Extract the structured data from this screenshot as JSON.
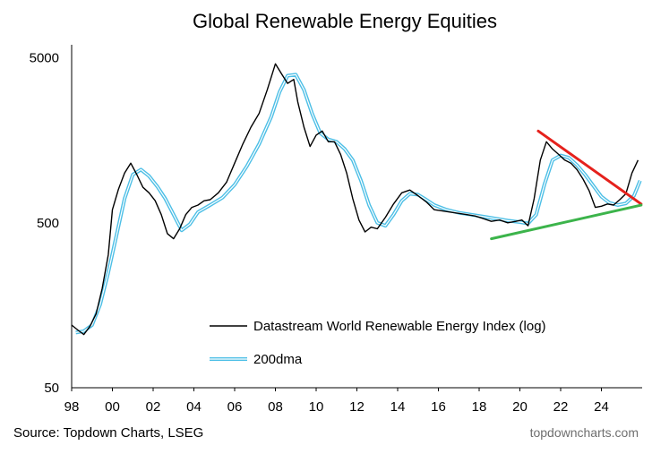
{
  "chart_data": {
    "type": "line",
    "title": "Global Renewable Energy Equities",
    "xlabel": "",
    "ylabel": "",
    "yscale": "log",
    "ylim": [
      50,
      6000
    ],
    "xlim": [
      1998,
      2026
    ],
    "y_ticks": [
      {
        "value": 50,
        "label": "50"
      },
      {
        "value": 500,
        "label": "500"
      },
      {
        "value": 5000,
        "label": "5000"
      }
    ],
    "x_ticks": [
      {
        "value": 1998,
        "label": "98"
      },
      {
        "value": 2000,
        "label": "00"
      },
      {
        "value": 2002,
        "label": "02"
      },
      {
        "value": 2004,
        "label": "04"
      },
      {
        "value": 2006,
        "label": "06"
      },
      {
        "value": 2008,
        "label": "08"
      },
      {
        "value": 2010,
        "label": "10"
      },
      {
        "value": 2012,
        "label": "12"
      },
      {
        "value": 2014,
        "label": "14"
      },
      {
        "value": 2016,
        "label": "16"
      },
      {
        "value": 2018,
        "label": "18"
      },
      {
        "value": 2020,
        "label": "20"
      },
      {
        "value": 2022,
        "label": "22"
      },
      {
        "value": 2024,
        "label": "24"
      }
    ],
    "series": [
      {
        "name": "Datastream World Renewable Energy Index (log)",
        "color": "#000000",
        "x": [
          1998.0,
          1998.3,
          1998.6,
          1998.9,
          1999.2,
          1999.5,
          1999.8,
          2000.0,
          2000.3,
          2000.6,
          2000.9,
          2001.2,
          2001.5,
          2001.8,
          2002.1,
          2002.4,
          2002.7,
          2003.0,
          2003.3,
          2003.6,
          2003.9,
          2004.2,
          2004.5,
          2004.8,
          2005.2,
          2005.6,
          2006.0,
          2006.4,
          2006.8,
          2007.2,
          2007.6,
          2008.0,
          2008.3,
          2008.6,
          2008.9,
          2009.1,
          2009.4,
          2009.7,
          2010.0,
          2010.3,
          2010.6,
          2010.9,
          2011.2,
          2011.5,
          2011.8,
          2012.1,
          2012.4,
          2012.7,
          2013.0,
          2013.4,
          2013.8,
          2014.2,
          2014.6,
          2015.0,
          2015.4,
          2015.8,
          2016.2,
          2016.6,
          2017.0,
          2017.4,
          2017.8,
          2018.2,
          2018.6,
          2019.0,
          2019.4,
          2019.8,
          2020.1,
          2020.4,
          2020.7,
          2021.0,
          2021.3,
          2021.6,
          2021.9,
          2022.2,
          2022.5,
          2022.8,
          2023.1,
          2023.4,
          2023.7,
          2024.0,
          2024.3,
          2024.6,
          2024.9,
          2025.2,
          2025.5,
          2025.8
        ],
        "values": [
          120,
          112,
          105,
          118,
          140,
          200,
          320,
          600,
          800,
          1000,
          1150,
          980,
          820,
          760,
          680,
          560,
          430,
          400,
          460,
          560,
          620,
          640,
          680,
          690,
          760,
          880,
          1150,
          1500,
          1900,
          2300,
          3200,
          4600,
          4000,
          3500,
          3700,
          2700,
          1900,
          1450,
          1700,
          1800,
          1550,
          1550,
          1300,
          1000,
          700,
          520,
          440,
          470,
          460,
          540,
          650,
          760,
          790,
          730,
          670,
          600,
          590,
          580,
          570,
          560,
          550,
          530,
          510,
          520,
          500,
          510,
          520,
          480,
          700,
          1200,
          1550,
          1400,
          1300,
          1200,
          1150,
          1050,
          920,
          780,
          620,
          630,
          650,
          640,
          690,
          750,
          1000,
          1200
        ]
      },
      {
        "name": "200dma",
        "color": "#4dbfe6",
        "x": [
          1998.2,
          1998.6,
          1999.0,
          1999.4,
          1999.8,
          2000.2,
          2000.6,
          2001.0,
          2001.4,
          2001.8,
          2002.2,
          2002.6,
          2003.0,
          2003.4,
          2003.8,
          2004.2,
          2004.8,
          2005.4,
          2006.0,
          2006.6,
          2007.2,
          2007.8,
          2008.2,
          2008.6,
          2009.0,
          2009.4,
          2009.8,
          2010.2,
          2010.6,
          2011.0,
          2011.4,
          2011.8,
          2012.2,
          2012.6,
          2013.0,
          2013.4,
          2013.8,
          2014.2,
          2014.6,
          2015.0,
          2015.4,
          2015.8,
          2016.4,
          2017.0,
          2017.6,
          2018.2,
          2018.8,
          2019.4,
          2020.0,
          2020.4,
          2020.8,
          2021.2,
          2021.6,
          2022.0,
          2022.4,
          2022.8,
          2023.2,
          2023.6,
          2024.0,
          2024.4,
          2024.8,
          2025.2,
          2025.6,
          2025.9
        ],
        "values": [
          108,
          110,
          120,
          160,
          250,
          420,
          700,
          980,
          1050,
          960,
          830,
          700,
          560,
          450,
          490,
          580,
          640,
          710,
          850,
          1100,
          1500,
          2200,
          3100,
          3900,
          3950,
          3200,
          2300,
          1750,
          1600,
          1550,
          1400,
          1200,
          900,
          640,
          500,
          480,
          560,
          680,
          750,
          740,
          690,
          640,
          600,
          575,
          560,
          545,
          530,
          515,
          505,
          495,
          560,
          850,
          1200,
          1280,
          1240,
          1120,
          980,
          840,
          720,
          660,
          640,
          655,
          730,
          900
        ]
      }
    ],
    "annotations": [
      {
        "name": "downtrend-line",
        "color": "#e5211c",
        "points": [
          [
            2020.9,
            1800
          ],
          [
            2025.95,
            650
          ]
        ]
      },
      {
        "name": "uptrend-line",
        "color": "#3cb44b",
        "points": [
          [
            2018.6,
            400
          ],
          [
            2025.95,
            640
          ]
        ]
      }
    ],
    "legend": {
      "position": "bottom-right",
      "entries": [
        "Datastream World Renewable Energy Index (log)",
        "200dma"
      ]
    },
    "grid": false
  },
  "footer": {
    "source": "Source: Topdown Charts, LSEG",
    "brand": "topdowncharts.com"
  }
}
